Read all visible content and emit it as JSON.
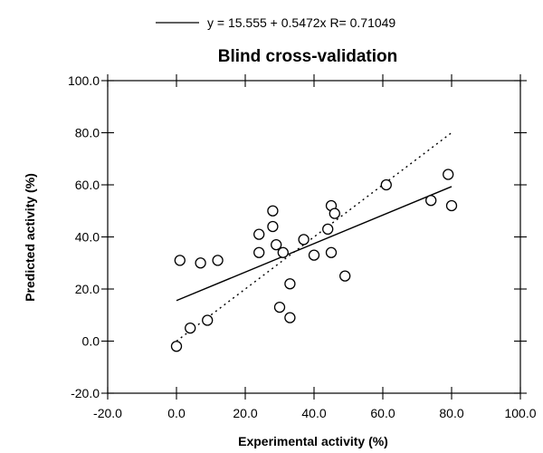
{
  "chart_data": {
    "type": "scatter",
    "title": "Blind   cross-validation",
    "legend": {
      "text": "y = 15.555 + 0.5472x R= 0.71049",
      "placement": "top"
    },
    "xlabel": "Experimental   activity   (%)",
    "ylabel": "Predicted   activity   (%)",
    "xlim": [
      -20,
      100
    ],
    "ylim": [
      -20,
      100
    ],
    "x_ticks": [
      -20,
      0,
      20,
      40,
      60,
      80,
      100
    ],
    "y_ticks": [
      -20,
      0,
      20,
      40,
      60,
      80,
      100
    ],
    "x_tick_labels": [
      "-20.0",
      "0.0",
      "20.0",
      "40.0",
      "60.0",
      "80.0",
      "100.0"
    ],
    "y_tick_labels": [
      "-20.0",
      "0.0",
      "20.0",
      "40.0",
      "60.0",
      "80.0",
      "100.0"
    ],
    "grid": false,
    "points": {
      "x": [
        0,
        1,
        4,
        7,
        9,
        12,
        24,
        24,
        28,
        28,
        29,
        30,
        31,
        33,
        33,
        37,
        40,
        44,
        45,
        45,
        46,
        49,
        61,
        74,
        79,
        80
      ],
      "y": [
        -2,
        31,
        5,
        30,
        8,
        31,
        34,
        41,
        44,
        50,
        37,
        13,
        34,
        22,
        9,
        39,
        33,
        43,
        34,
        52,
        49,
        25,
        60,
        54,
        64,
        52
      ]
    },
    "fit_line": {
      "intercept": 15.555,
      "slope": 0.5472,
      "x_range": [
        0,
        80
      ]
    },
    "identity_line": {
      "x_range": [
        0,
        80
      ]
    }
  }
}
